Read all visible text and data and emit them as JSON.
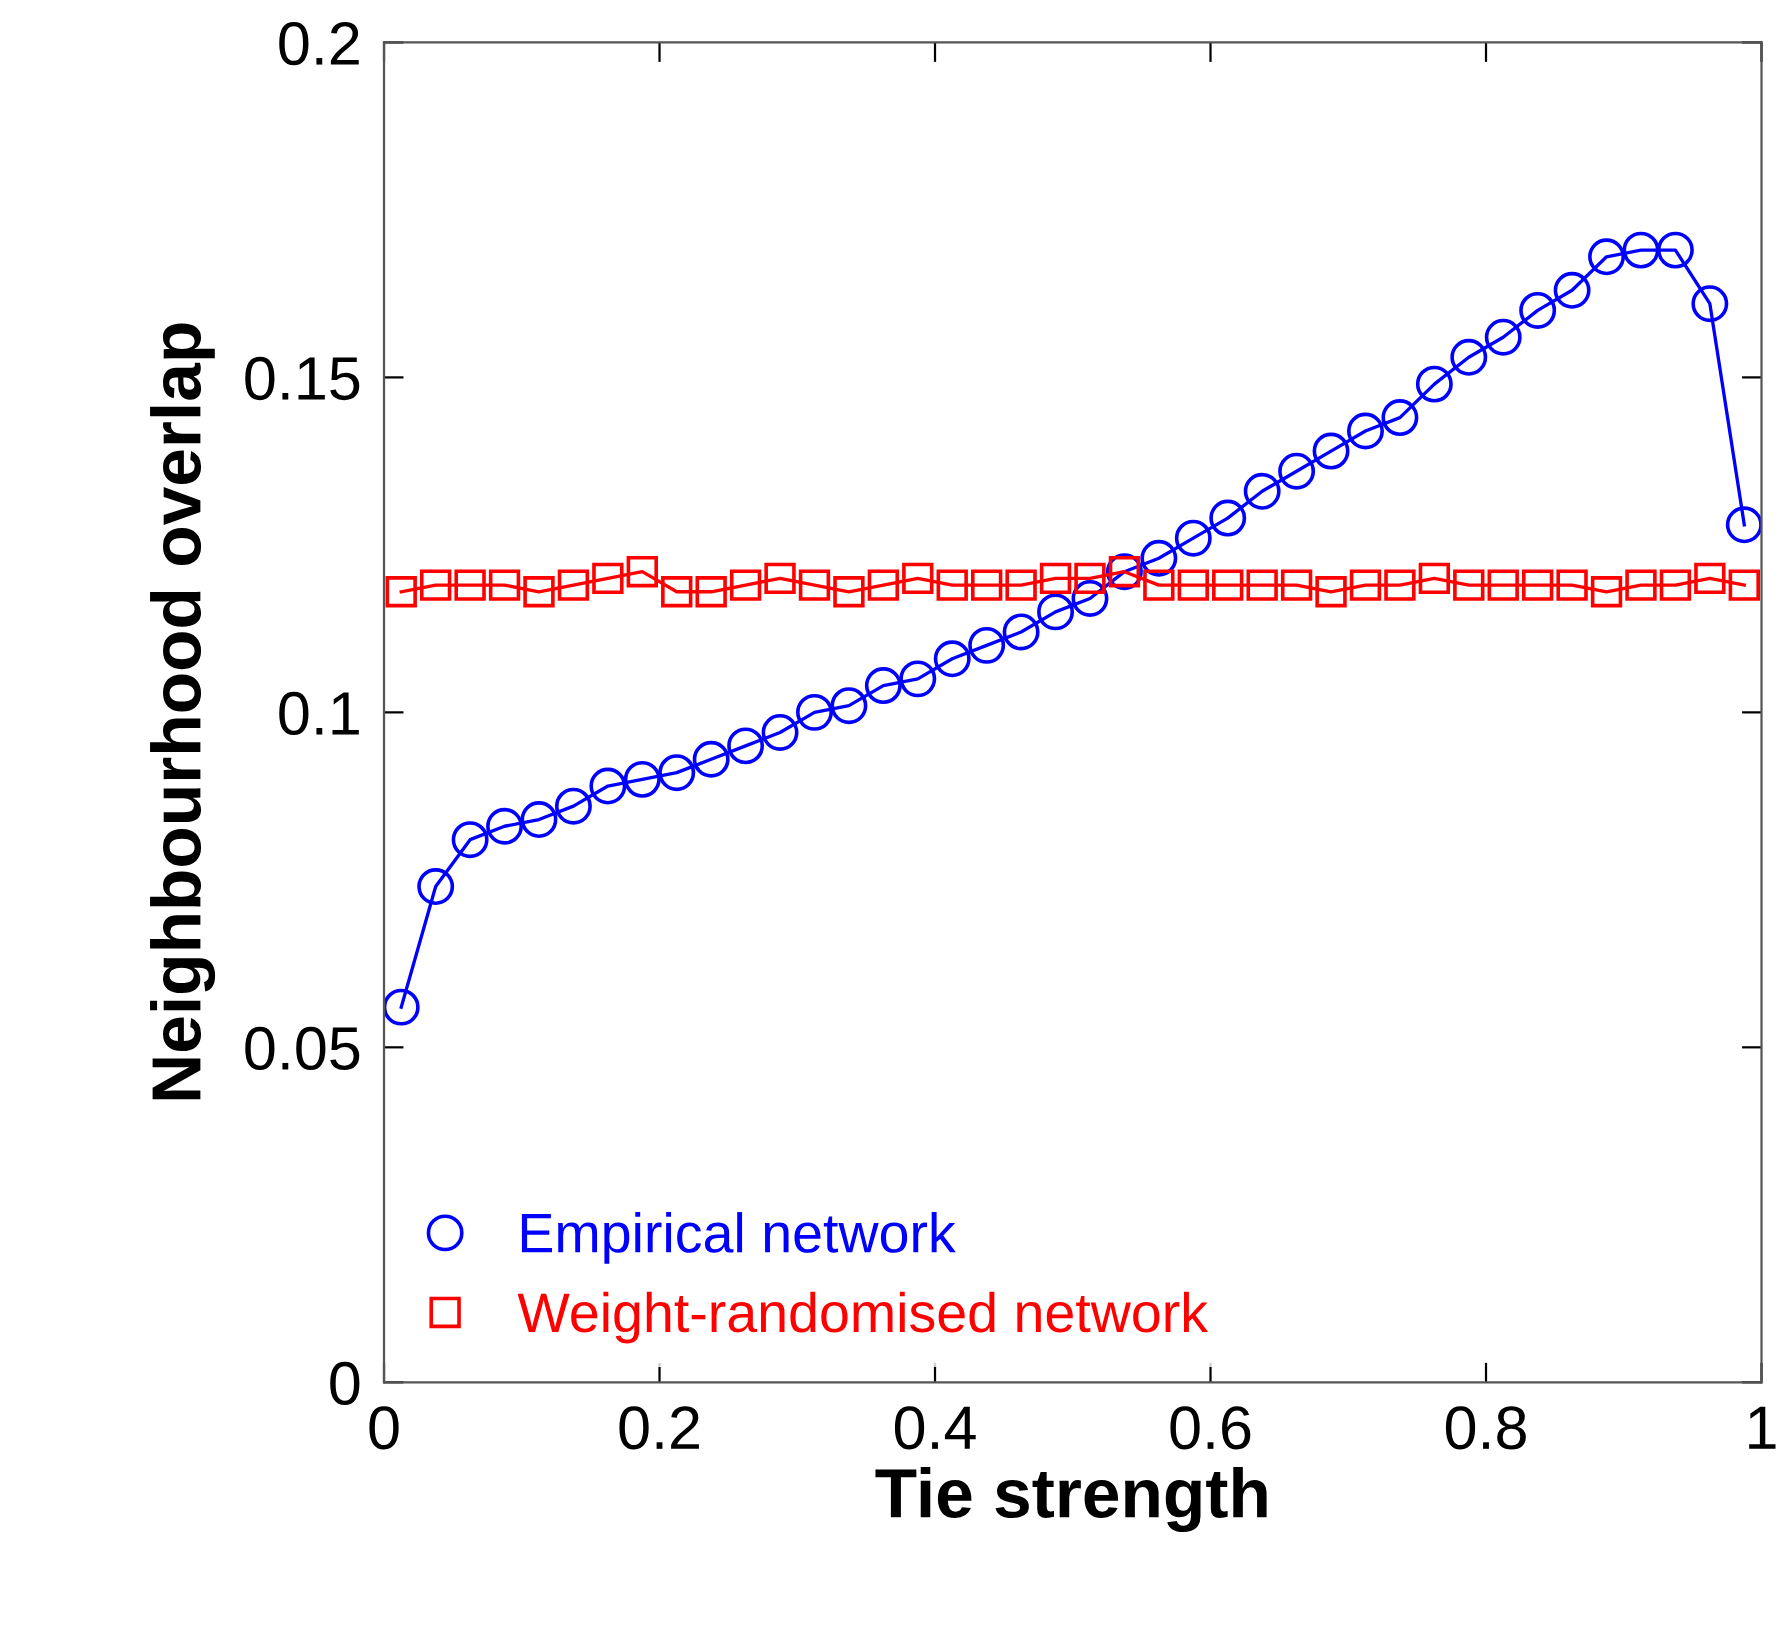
{
  "chart_data": {
    "type": "line",
    "xlabel": "Tie strength",
    "ylabel": "Neighbourhood overlap",
    "x": [
      0.0125,
      0.0375,
      0.0625,
      0.0875,
      0.1125,
      0.1375,
      0.1625,
      0.1875,
      0.2125,
      0.2375,
      0.2625,
      0.2875,
      0.3125,
      0.3375,
      0.3625,
      0.3875,
      0.4125,
      0.4375,
      0.4625,
      0.4875,
      0.5125,
      0.5375,
      0.5625,
      0.5875,
      0.6125,
      0.6375,
      0.6625,
      0.6875,
      0.7125,
      0.7375,
      0.7625,
      0.7875,
      0.8125,
      0.8375,
      0.8625,
      0.8875,
      0.9125,
      0.9375,
      0.9625,
      0.9875
    ],
    "series": [
      {
        "name": "Empirical network",
        "color": "#0000ff",
        "marker": "circle",
        "values": [
          0.056,
          0.074,
          0.081,
          0.083,
          0.084,
          0.086,
          0.089,
          0.09,
          0.091,
          0.093,
          0.095,
          0.097,
          0.1,
          0.101,
          0.104,
          0.105,
          0.108,
          0.11,
          0.112,
          0.115,
          0.117,
          0.121,
          0.123,
          0.126,
          0.129,
          0.133,
          0.136,
          0.139,
          0.142,
          0.144,
          0.149,
          0.153,
          0.156,
          0.16,
          0.163,
          0.168,
          0.169,
          0.169,
          0.161,
          0.128
        ]
      },
      {
        "name": "Weight-randomised network",
        "color": "#ff0000",
        "marker": "square",
        "values": [
          0.118,
          0.119,
          0.119,
          0.119,
          0.118,
          0.119,
          0.12,
          0.121,
          0.118,
          0.118,
          0.119,
          0.12,
          0.119,
          0.118,
          0.119,
          0.12,
          0.119,
          0.119,
          0.119,
          0.12,
          0.12,
          0.121,
          0.119,
          0.119,
          0.119,
          0.119,
          0.119,
          0.118,
          0.119,
          0.119,
          0.12,
          0.119,
          0.119,
          0.119,
          0.119,
          0.118,
          0.119,
          0.119,
          0.12,
          0.119
        ]
      }
    ],
    "xlim": [
      0,
      1
    ],
    "xticks": [
      0,
      0.2,
      0.4,
      0.6,
      0.8,
      1
    ],
    "ylim": [
      0,
      0.2
    ],
    "yticks": [
      0,
      0.05,
      0.1,
      0.15,
      0.2
    ],
    "grid": false,
    "legend": "bottom left",
    "line_style": "solid"
  }
}
